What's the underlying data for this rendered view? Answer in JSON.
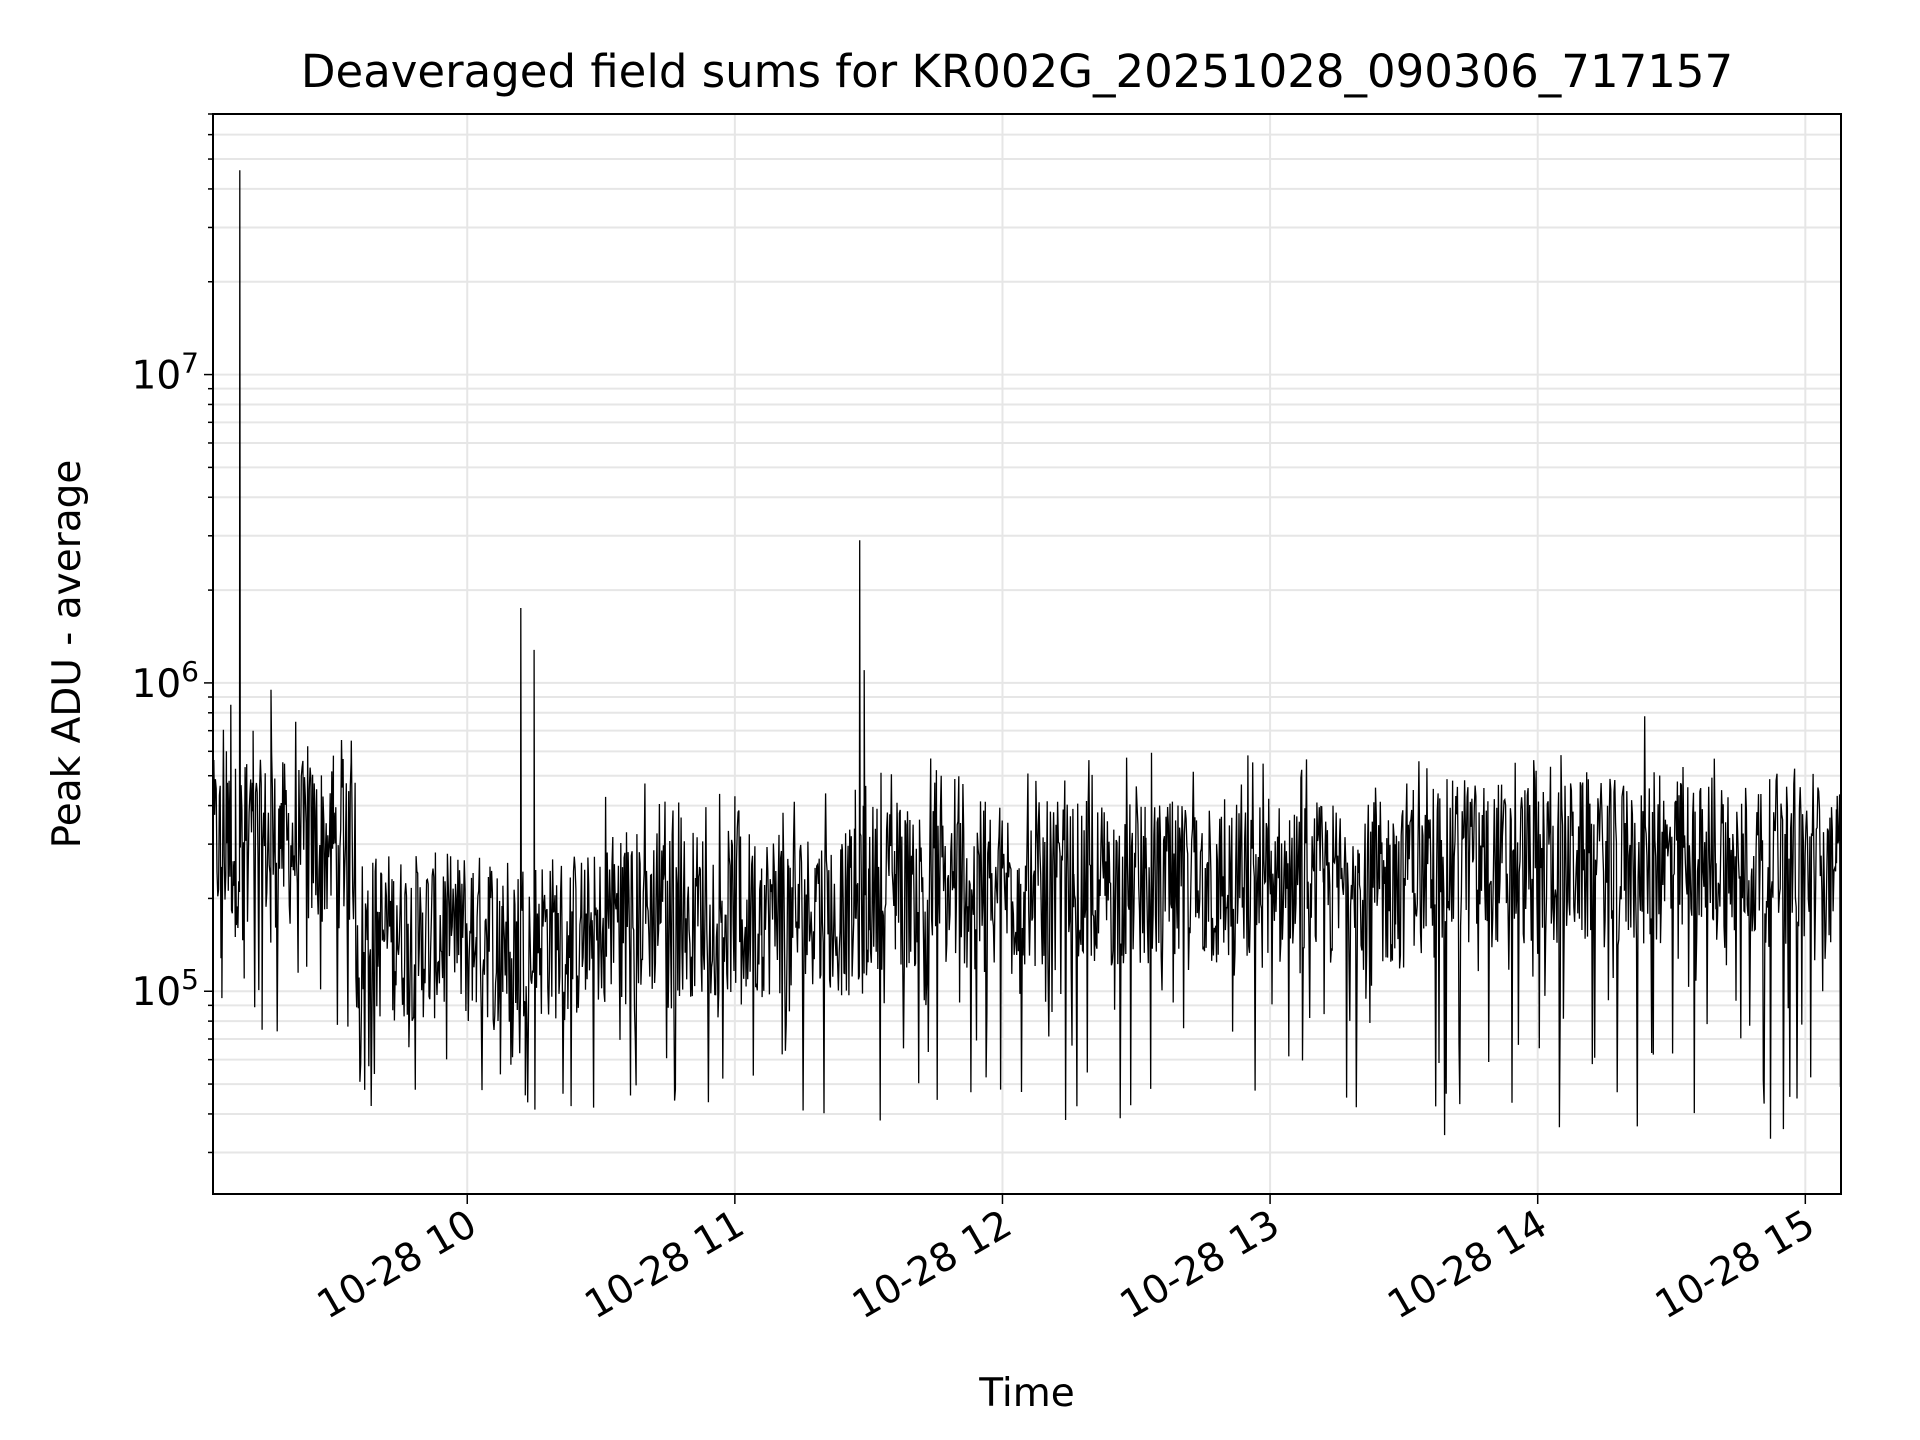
{
  "chart_data": {
    "type": "line",
    "title": "Deaveraged field sums for KR002G_20251028_090306_717157",
    "xlabel": "Time",
    "ylabel": "Peak ADU - average",
    "x_scale": "time",
    "y_scale": "log",
    "xlim": [
      "2025-10-28 09:03",
      "2025-10-28 15:08"
    ],
    "ylim": [
      22000,
      70000000
    ],
    "grid": "major and minor",
    "x_ticks": [
      {
        "value": "2025-10-28 10:00",
        "label": "10-28 10"
      },
      {
        "value": "2025-10-28 11:00",
        "label": "10-28 11"
      },
      {
        "value": "2025-10-28 12:00",
        "label": "10-28 12"
      },
      {
        "value": "2025-10-28 13:00",
        "label": "10-28 13"
      },
      {
        "value": "2025-10-28 14:00",
        "label": "10-28 14"
      },
      {
        "value": "2025-10-28 15:00",
        "label": "10-28 15"
      }
    ],
    "y_ticks": [
      {
        "value": 100000,
        "base": "10",
        "exp": "5"
      },
      {
        "value": 1000000,
        "base": "10",
        "exp": "6"
      },
      {
        "value": 10000000,
        "base": "10",
        "exp": "7"
      }
    ],
    "line_color": "#000000",
    "series": [
      {
        "x": [
          "2025-10-28 09:03",
          "2025-10-28 09:05",
          "2025-10-28 09:06",
          "2025-10-28 09:07",
          "2025-10-28 09:08",
          "2025-10-28 09:09",
          "2025-10-28 09:10",
          "2025-10-28 09:12",
          "2025-10-28 09:14",
          "2025-10-28 09:16",
          "2025-10-28 09:18",
          "2025-10-28 09:20",
          "2025-10-28 09:24",
          "2025-10-28 09:28",
          "2025-10-28 09:30",
          "2025-10-28 09:34",
          "2025-10-28 09:40",
          "2025-10-28 09:46",
          "2025-10-28 09:50",
          "2025-10-28 09:56",
          "2025-10-28 10:02",
          "2025-10-28 10:08",
          "2025-10-28 10:12",
          "2025-10-28 10:13",
          "2025-10-28 10:15",
          "2025-10-28 10:18",
          "2025-10-28 10:20",
          "2025-10-28 10:28",
          "2025-10-28 10:36",
          "2025-10-28 10:44",
          "2025-10-28 10:52",
          "2025-10-28 11:00",
          "2025-10-28 11:06",
          "2025-10-28 11:12",
          "2025-10-28 11:18",
          "2025-10-28 11:24",
          "2025-10-28 11:27",
          "2025-10-28 11:28",
          "2025-10-28 11:29",
          "2025-10-28 11:30",
          "2025-10-28 11:36",
          "2025-10-28 11:44",
          "2025-10-28 11:52",
          "2025-10-28 12:00",
          "2025-10-28 12:08",
          "2025-10-28 12:16",
          "2025-10-28 12:24",
          "2025-10-28 12:32",
          "2025-10-28 12:40",
          "2025-10-28 12:48",
          "2025-10-28 12:56",
          "2025-10-28 13:04",
          "2025-10-28 13:12",
          "2025-10-28 13:20",
          "2025-10-28 13:28",
          "2025-10-28 13:36",
          "2025-10-28 13:44",
          "2025-10-28 13:52",
          "2025-10-28 14:00",
          "2025-10-28 14:08",
          "2025-10-28 14:16",
          "2025-10-28 14:24",
          "2025-10-28 14:32",
          "2025-10-28 14:40",
          "2025-10-28 14:48",
          "2025-10-28 14:56",
          "2025-10-28 15:02",
          "2025-10-28 15:07"
        ],
        "y": [
          280000,
          95000,
          600000,
          850000,
          150000,
          46000000,
          110000,
          700000,
          75000,
          950000,
          400000,
          250000,
          120000,
          210000,
          300000,
          650000,
          120000,
          140000,
          180000,
          130000,
          150000,
          220000,
          1750000,
          90000,
          1280000,
          140000,
          180000,
          170000,
          200000,
          230000,
          240000,
          220000,
          250000,
          230000,
          240000,
          300000,
          450000,
          2900000,
          1100000,
          250000,
          240000,
          260000,
          270000,
          250000,
          220000,
          240000,
          260000,
          250000,
          280000,
          300000,
          290000,
          260000,
          250000,
          280000,
          300000,
          270000,
          290000,
          260000,
          280000,
          260000,
          250000,
          780000,
          270000,
          260000,
          250000,
          240000,
          230000,
          260000
        ]
      }
    ],
    "noise_band": {
      "segments": [
        {
          "from": "2025-10-28 09:03",
          "to": "2025-10-28 09:35",
          "low": 60000,
          "mid": 300000,
          "high": 800000
        },
        {
          "from": "2025-10-28 09:35",
          "to": "2025-10-28 10:30",
          "low": 40000,
          "mid": 150000,
          "high": 280000
        },
        {
          "from": "2025-10-28 10:30",
          "to": "2025-10-28 11:30",
          "low": 40000,
          "mid": 180000,
          "high": 500000
        },
        {
          "from": "2025-10-28 11:30",
          "to": "2025-10-28 13:30",
          "low": 38000,
          "mid": 220000,
          "high": 600000
        },
        {
          "from": "2025-10-28 13:30",
          "to": "2025-10-28 15:08",
          "low": 33000,
          "mid": 260000,
          "high": 600000
        }
      ]
    }
  }
}
